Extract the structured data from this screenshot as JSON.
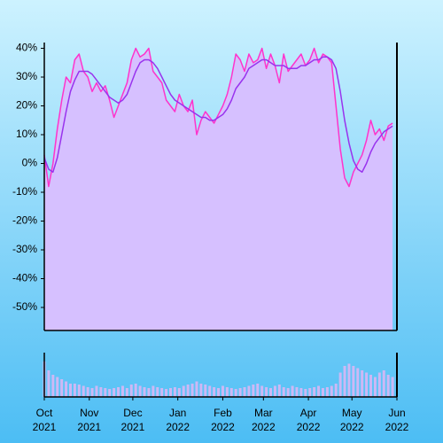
{
  "chart_data": {
    "type": "line",
    "x": [
      "2021-10-01",
      "2021-10-04",
      "2021-10-07",
      "2021-10-10",
      "2021-10-13",
      "2021-10-16",
      "2021-10-19",
      "2021-10-22",
      "2021-10-25",
      "2021-10-28",
      "2021-10-31",
      "2021-11-03",
      "2021-11-06",
      "2021-11-09",
      "2021-11-12",
      "2021-11-15",
      "2021-11-18",
      "2021-11-21",
      "2021-11-24",
      "2021-11-27",
      "2021-11-30",
      "2021-12-03",
      "2021-12-06",
      "2021-12-09",
      "2021-12-12",
      "2021-12-15",
      "2021-12-18",
      "2021-12-21",
      "2021-12-24",
      "2021-12-27",
      "2021-12-30",
      "2022-01-02",
      "2022-01-05",
      "2022-01-08",
      "2022-01-11",
      "2022-01-14",
      "2022-01-17",
      "2022-01-20",
      "2022-01-23",
      "2022-01-26",
      "2022-01-29",
      "2022-02-01",
      "2022-02-04",
      "2022-02-07",
      "2022-02-10",
      "2022-02-13",
      "2022-02-16",
      "2022-02-19",
      "2022-02-22",
      "2022-02-25",
      "2022-02-28",
      "2022-03-03",
      "2022-03-06",
      "2022-03-09",
      "2022-03-12",
      "2022-03-15",
      "2022-03-18",
      "2022-03-21",
      "2022-03-24",
      "2022-03-27",
      "2022-03-30",
      "2022-04-02",
      "2022-04-05",
      "2022-04-08",
      "2022-04-11",
      "2022-04-14",
      "2022-04-17",
      "2022-04-20",
      "2022-04-23",
      "2022-04-26",
      "2022-04-29",
      "2022-05-02",
      "2022-05-05",
      "2022-05-08",
      "2022-05-11",
      "2022-05-14",
      "2022-05-17",
      "2022-05-20",
      "2022-05-23",
      "2022-05-26",
      "2022-05-29"
    ],
    "series": [
      {
        "color": "#ff33cc",
        "fill": "#d6c0ff",
        "values": [
          3,
          -8,
          0,
          12,
          22,
          30,
          28,
          36,
          38,
          32,
          30,
          25,
          28,
          25,
          27,
          22,
          16,
          20,
          24,
          28,
          36,
          40,
          37,
          38,
          40,
          32,
          30,
          28,
          22,
          20,
          18,
          24,
          20,
          18,
          22,
          10,
          15,
          18,
          16,
          14,
          17,
          20,
          24,
          30,
          38,
          36,
          32,
          38,
          35,
          36,
          40,
          33,
          38,
          34,
          28,
          38,
          32,
          34,
          36,
          38,
          34,
          36,
          40,
          35,
          38,
          37,
          35,
          20,
          5,
          -5,
          -8,
          -3,
          0,
          3,
          8,
          15,
          10,
          12,
          8,
          13,
          14
        ]
      },
      {
        "color": "#9933ee",
        "values": [
          2,
          -2,
          -3,
          2,
          10,
          18,
          25,
          29,
          32,
          32,
          32,
          31,
          29,
          27,
          25,
          23,
          22,
          21,
          22,
          24,
          28,
          32,
          35,
          36,
          36,
          35,
          33,
          30,
          27,
          24,
          22,
          21,
          20,
          19,
          18,
          17,
          16,
          16,
          15,
          15,
          16,
          17,
          19,
          22,
          26,
          28,
          30,
          33,
          34,
          35,
          36,
          36,
          35,
          34,
          34,
          34,
          33,
          33,
          33,
          34,
          34,
          35,
          36,
          36,
          37,
          37,
          36,
          33,
          25,
          15,
          7,
          1,
          -2,
          -3,
          0,
          4,
          7,
          9,
          11,
          12,
          13
        ]
      }
    ],
    "volume": {
      "color": "#cdb8f5",
      "ylim": [
        0,
        100
      ],
      "values": [
        80,
        60,
        50,
        45,
        40,
        35,
        30,
        30,
        28,
        25,
        22,
        20,
        25,
        22,
        20,
        18,
        20,
        22,
        25,
        20,
        28,
        30,
        25,
        22,
        20,
        25,
        22,
        20,
        18,
        20,
        22,
        20,
        25,
        28,
        30,
        35,
        30,
        28,
        25,
        22,
        20,
        25,
        22,
        20,
        18,
        20,
        22,
        25,
        28,
        30,
        25,
        22,
        20,
        25,
        28,
        22,
        20,
        25,
        22,
        20,
        18,
        20,
        22,
        25,
        20,
        22,
        25,
        30,
        55,
        70,
        75,
        70,
        65,
        60,
        55,
        50,
        45,
        55,
        60,
        50,
        45
      ]
    },
    "xlim": [
      "2021-10-01",
      "2022-06-01"
    ],
    "xticks": [
      {
        "value": "2021-10-01",
        "label": "Oct 2021"
      },
      {
        "value": "2021-11-01",
        "label": "Nov 2021"
      },
      {
        "value": "2021-12-01",
        "label": "Dec 2021"
      },
      {
        "value": "2022-01-01",
        "label": "Jan 2022"
      },
      {
        "value": "2022-02-01",
        "label": "Feb 2022"
      },
      {
        "value": "2022-03-01",
        "label": "Mar 2022"
      },
      {
        "value": "2022-04-01",
        "label": "Apr 2022"
      },
      {
        "value": "2022-05-01",
        "label": "May 2022"
      },
      {
        "value": "2022-06-01",
        "label": "Jun 2022"
      }
    ],
    "ylim": [
      -58,
      42
    ],
    "yticks": [
      {
        "value": 40,
        "label": "40%"
      },
      {
        "value": 30,
        "label": "30%"
      },
      {
        "value": 20,
        "label": "20%"
      },
      {
        "value": 10,
        "label": "10%"
      },
      {
        "value": 0,
        "label": "0%"
      },
      {
        "value": -10,
        "label": "-10%"
      },
      {
        "value": -20,
        "label": "-20%"
      },
      {
        "value": -30,
        "label": "-30%"
      },
      {
        "value": -40,
        "label": "-40%"
      },
      {
        "value": -50,
        "label": "-50%"
      }
    ],
    "grid": false
  }
}
